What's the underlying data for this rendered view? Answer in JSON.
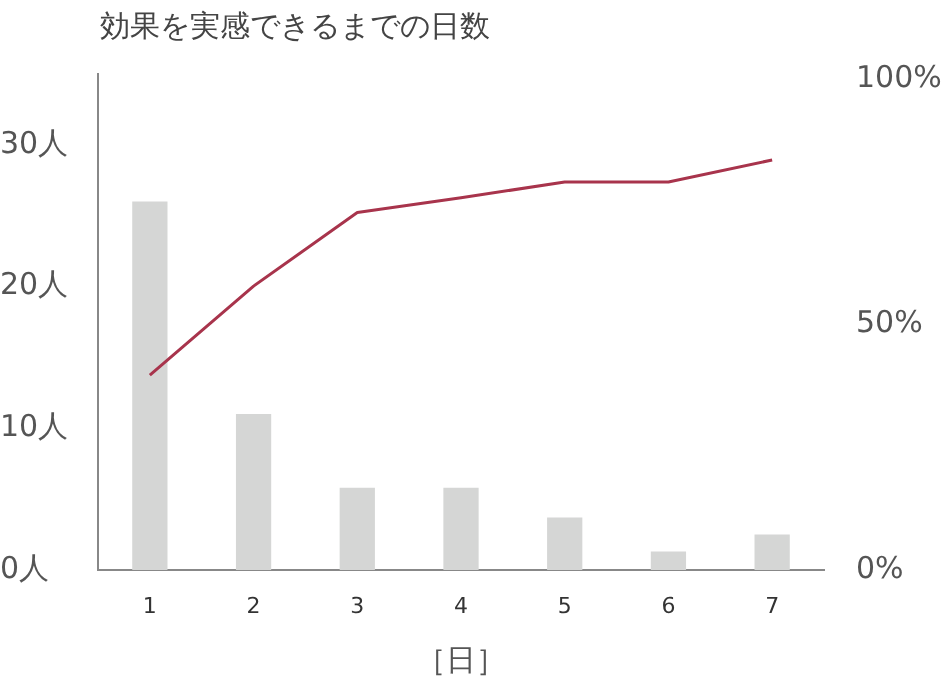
{
  "chart_data": {
    "type": "bar",
    "title": "効果を実感できるまでの日数",
    "xlabel": "［日］",
    "categories": [
      "1",
      "2",
      "3",
      "4",
      "5",
      "6",
      "7"
    ],
    "series": [
      {
        "color": "#d5d6d5",
        "values": [
          26,
          11,
          5.8,
          5.8,
          3.7,
          1.3,
          2.5
        ]
      },
      {
        "type": "line",
        "axis": "y2",
        "color": "#a8344c",
        "values": [
          39.7,
          57.8,
          72.8,
          75.8,
          79,
          79,
          83.5
        ]
      }
    ],
    "ylim": [
      0,
      35
    ],
    "yticks": [
      {
        "value": 0,
        "label": "0人"
      },
      {
        "value": 10,
        "label": "10人"
      },
      {
        "value": 20,
        "label": "20人"
      },
      {
        "value": 30,
        "label": "30人"
      }
    ],
    "y2lim": [
      0,
      101
    ],
    "y2ticks": [
      {
        "value": 0,
        "label": "0%"
      },
      {
        "value": 50,
        "label": "50%"
      },
      {
        "value": 100,
        "label": "100%"
      }
    ],
    "grid": false,
    "legend": false,
    "marker": "none"
  }
}
